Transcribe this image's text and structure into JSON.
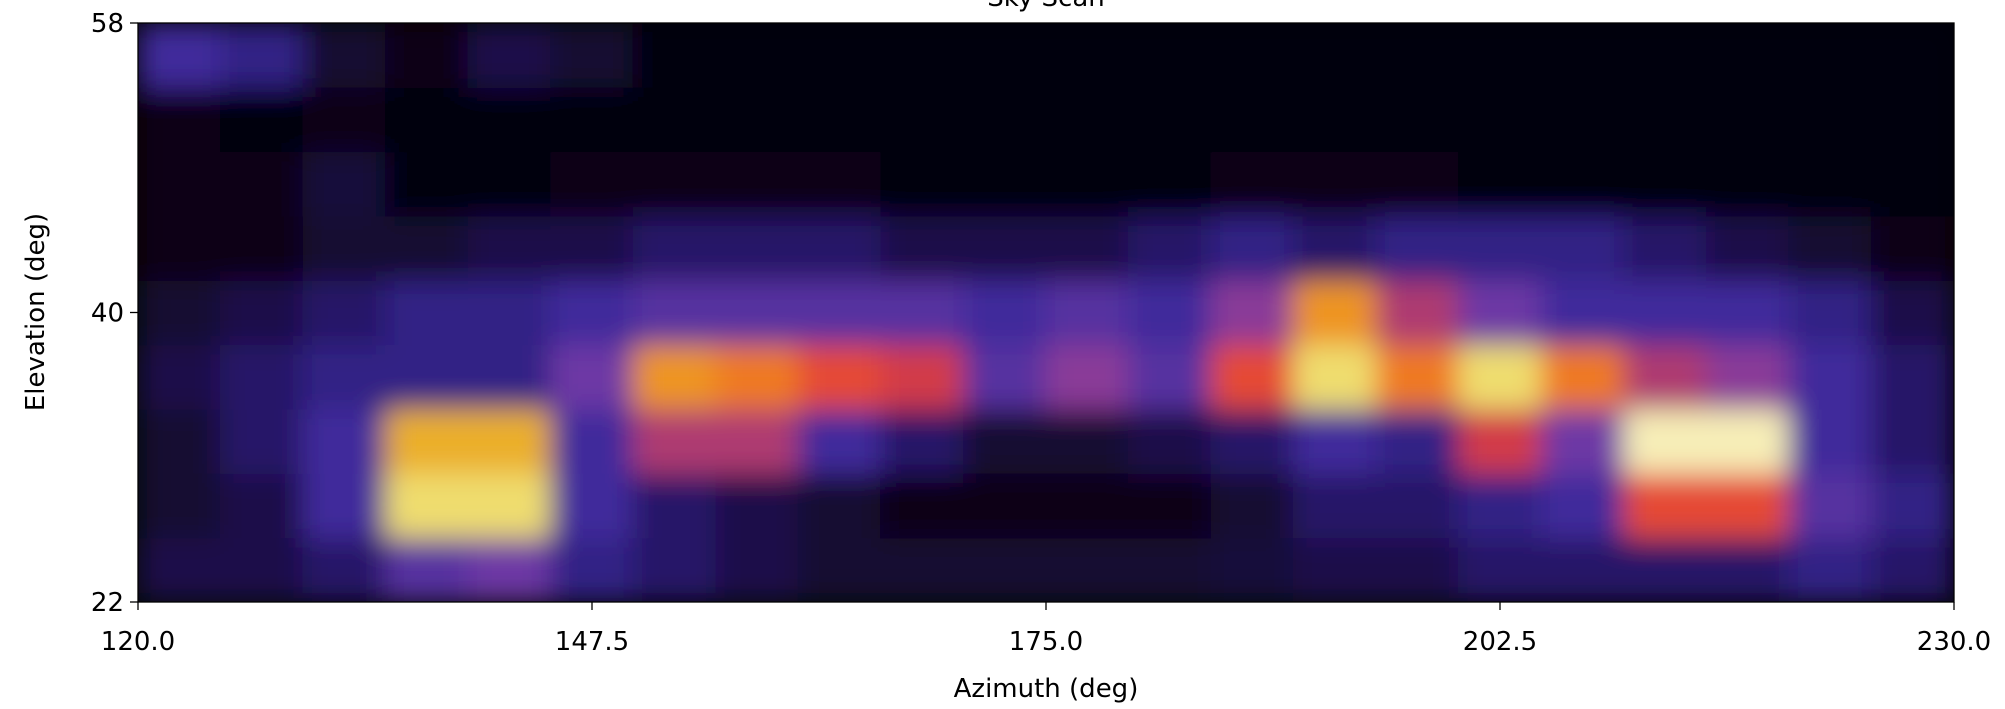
{
  "chart_data": {
    "type": "heatmap",
    "title": "Sky Scan",
    "xlabel": "Azimuth (deg)",
    "ylabel": "Elevation (deg)",
    "x": [
      122.5,
      127.5,
      132.5,
      137.5,
      142.5,
      147.5,
      152.5,
      157.5,
      162.5,
      167.5,
      172.5,
      177.5,
      182.5,
      187.5,
      192.5,
      197.5,
      202.5,
      207.5,
      212.5,
      217.5,
      222.5,
      227.5
    ],
    "y": [
      24,
      28,
      32,
      36,
      40,
      44,
      48,
      52,
      56
    ],
    "z": [
      [
        0.15,
        0.15,
        0.2,
        0.35,
        0.4,
        0.25,
        0.2,
        0.15,
        0.1,
        0.1,
        0.1,
        0.1,
        0.1,
        0.12,
        0.15,
        0.15,
        0.2,
        0.2,
        0.2,
        0.2,
        0.25,
        0.2
      ],
      [
        0.1,
        0.15,
        0.3,
        0.9,
        0.9,
        0.3,
        0.2,
        0.15,
        0.1,
        0.05,
        0.05,
        0.05,
        0.05,
        0.1,
        0.2,
        0.2,
        0.25,
        0.3,
        0.6,
        0.6,
        0.35,
        0.25
      ],
      [
        0.1,
        0.2,
        0.3,
        0.8,
        0.8,
        0.3,
        0.5,
        0.5,
        0.3,
        0.2,
        0.1,
        0.1,
        0.15,
        0.2,
        0.3,
        0.25,
        0.55,
        0.4,
        0.95,
        0.95,
        0.3,
        0.2
      ],
      [
        0.15,
        0.2,
        0.25,
        0.25,
        0.25,
        0.4,
        0.75,
        0.7,
        0.6,
        0.55,
        0.35,
        0.45,
        0.35,
        0.6,
        0.9,
        0.7,
        0.9,
        0.7,
        0.5,
        0.45,
        0.3,
        0.2
      ],
      [
        0.1,
        0.15,
        0.2,
        0.25,
        0.25,
        0.3,
        0.35,
        0.35,
        0.35,
        0.35,
        0.3,
        0.35,
        0.3,
        0.45,
        0.75,
        0.5,
        0.4,
        0.3,
        0.3,
        0.3,
        0.25,
        0.15
      ],
      [
        0.05,
        0.05,
        0.1,
        0.1,
        0.15,
        0.15,
        0.2,
        0.2,
        0.2,
        0.15,
        0.15,
        0.15,
        0.2,
        0.25,
        0.2,
        0.25,
        0.25,
        0.25,
        0.2,
        0.15,
        0.1,
        0.05
      ],
      [
        0.05,
        0.05,
        0.12,
        0.03,
        0.03,
        0.05,
        0.05,
        0.05,
        0.05,
        0.03,
        0.02,
        0.02,
        0.03,
        0.05,
        0.05,
        0.05,
        0.03,
        0.03,
        0.02,
        0.02,
        0.02,
        0.02
      ],
      [
        0.05,
        0.03,
        0.05,
        0.02,
        0.02,
        0.02,
        0.03,
        0.02,
        0.02,
        0.02,
        0.02,
        0.02,
        0.02,
        0.02,
        0.02,
        0.02,
        0.02,
        0.02,
        0.02,
        0.02,
        0.02,
        0.02
      ],
      [
        0.3,
        0.25,
        0.1,
        0.05,
        0.15,
        0.1,
        0.02,
        0.02,
        0.03,
        0.02,
        0.02,
        0.02,
        0.02,
        0.02,
        0.02,
        0.02,
        0.03,
        0.02,
        0.02,
        0.02,
        0.02,
        0.02
      ]
    ],
    "colormap": [
      "#000000",
      "#1a0c45",
      "#3a2a9a",
      "#7a3aa8",
      "#e23a3a",
      "#f08020",
      "#e8cf30",
      "#ffffff"
    ],
    "xlim": [
      120,
      230
    ],
    "ylim": [
      22,
      58
    ],
    "xticks": [
      {
        "value": 120,
        "label": "120.0"
      },
      {
        "value": 147.5,
        "label": "147.5"
      },
      {
        "value": 175,
        "label": "175.0"
      },
      {
        "value": 202.5,
        "label": "202.5"
      },
      {
        "value": 230,
        "label": "230.0"
      }
    ],
    "yticks": [
      22,
      40,
      58
    ]
  }
}
